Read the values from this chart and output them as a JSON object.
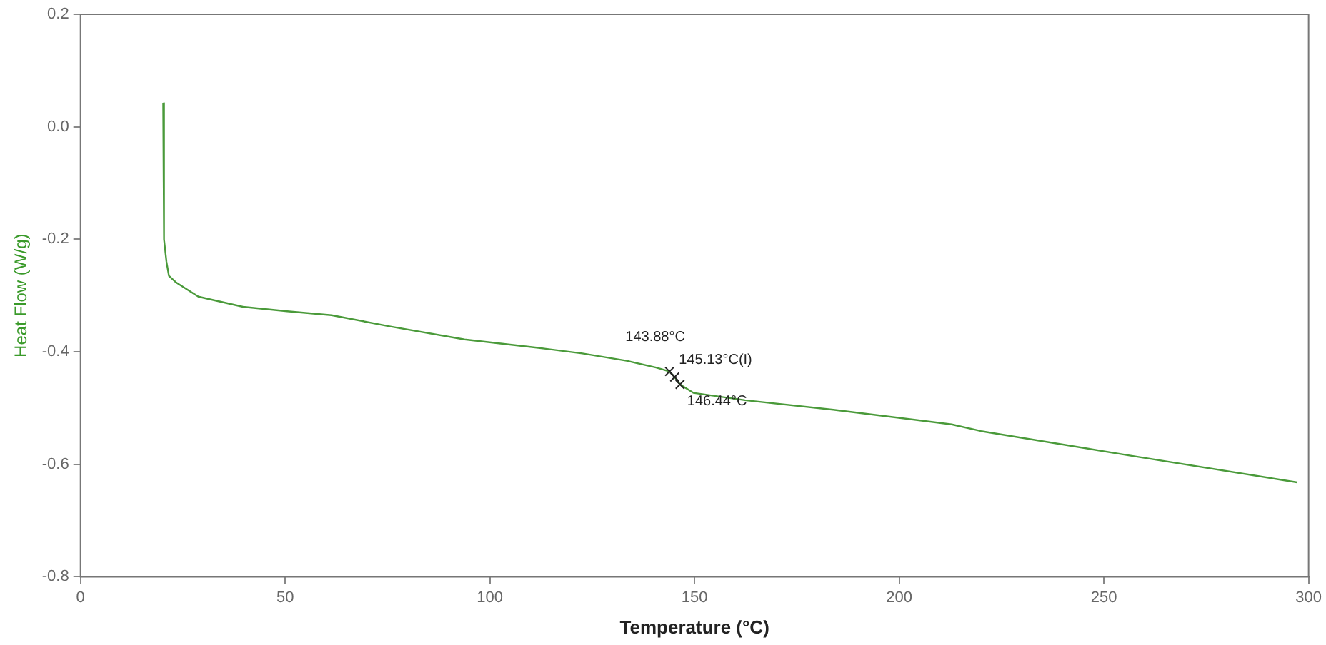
{
  "chart_data": {
    "type": "line",
    "xlabel": "Temperature (°C)",
    "ylabel": "Heat Flow (W/g)",
    "x": [
      20.2,
      20.4,
      21.0,
      21.6,
      23.4,
      28.8,
      39.7,
      50.5,
      61.3,
      75.7,
      93.8,
      111.8,
      122.6,
      133.4,
      140.6,
      143.88,
      145.13,
      146.44,
      149.7,
      162.3,
      183.9,
      212.8,
      220.0,
      256.0,
      297.2
    ],
    "series": [
      {
        "color": "#4a9a3a",
        "values": [
          0.042,
          -0.2,
          -0.24,
          -0.265,
          -0.277,
          -0.302,
          -0.32,
          -0.328,
          -0.335,
          -0.355,
          -0.378,
          -0.393,
          -0.403,
          -0.416,
          -0.428,
          -0.435,
          -0.445,
          -0.458,
          -0.473,
          -0.486,
          -0.503,
          -0.529,
          -0.541,
          -0.584,
          -0.632
        ]
      }
    ],
    "xlim": [
      0,
      300
    ],
    "xticks": [
      0,
      50,
      100,
      150,
      200,
      250,
      300
    ],
    "ylim": [
      -0.8,
      0.2
    ],
    "yticks": [
      {
        "value": -0.8,
        "label": "-0.8"
      },
      {
        "value": -0.6,
        "label": "-0.6"
      },
      {
        "value": -0.4,
        "label": "-0.4"
      },
      {
        "value": -0.2,
        "label": "-0.2"
      },
      {
        "value": 0,
        "label": "0.0"
      },
      {
        "value": 0.2,
        "label": "0.2"
      }
    ],
    "annotations": [
      {
        "text": "143.88°C",
        "x": 143.88,
        "y": -0.435
      },
      {
        "text": "145.13°C(I)",
        "x": 145.13,
        "y": -0.445
      },
      {
        "text": "146.44°C",
        "x": 146.44,
        "y": -0.458
      }
    ],
    "grid": false,
    "legend": false,
    "marker": "none",
    "line_style": "solid"
  }
}
